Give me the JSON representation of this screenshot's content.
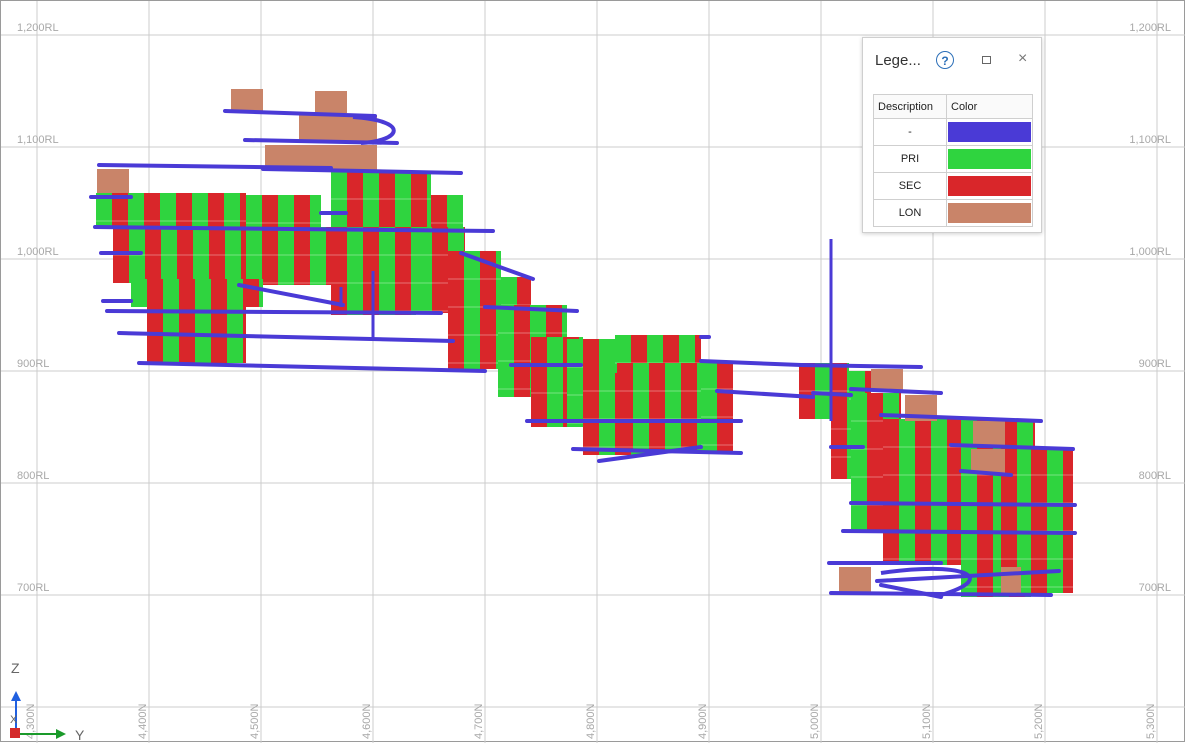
{
  "colors": {
    "ramp": "#4a3ad6",
    "pri": "#2fd43f",
    "sec": "#d9262a",
    "lon": "#c98469",
    "grid": "#cccccc"
  },
  "elevation_labels": [
    "1,200RL",
    "1,100RL",
    "1,000RL",
    "900RL",
    "800RL",
    "700RL"
  ],
  "northing_labels": [
    "4,300N",
    "4,400N",
    "4,500N",
    "4,600N",
    "4,700N",
    "4,800N",
    "4,900N",
    "5,000N",
    "5,100N",
    "5,200N",
    "5,300N"
  ],
  "axes": {
    "z": "Z",
    "y": "Y",
    "x": "X"
  },
  "legend": {
    "title": "Lege...",
    "help": "?",
    "close": "×",
    "col_description": "Description",
    "col_color": "Color",
    "rows": [
      {
        "description": "-",
        "color": "#4a3ad6"
      },
      {
        "description": "PRI",
        "color": "#2fd43f"
      },
      {
        "description": "SEC",
        "color": "#d9262a"
      },
      {
        "description": "LON",
        "color": "#c98469"
      }
    ]
  }
}
